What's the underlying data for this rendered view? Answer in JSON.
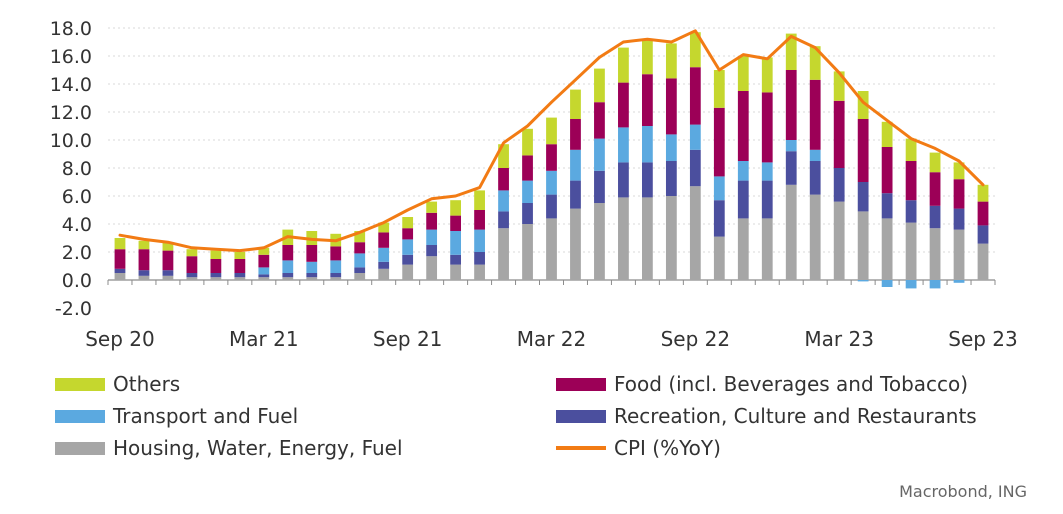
{
  "chart_data": {
    "type": "bar",
    "stacked": true,
    "source": "Macrobond, ING",
    "ylim": [
      -2,
      18
    ],
    "yticks": [
      "18.0",
      "16.0",
      "14.0",
      "12.0",
      "10.0",
      "8.0",
      "6.0",
      "4.0",
      "2.0",
      "0.0",
      "-2.0"
    ],
    "ytick_values": [
      18,
      16,
      14,
      12,
      10,
      8,
      6,
      4,
      2,
      0,
      -2
    ],
    "xtick_labels": [
      {
        "index": 0,
        "label": "Sep 20"
      },
      {
        "index": 6,
        "label": "Mar 21"
      },
      {
        "index": 12,
        "label": "Sep 21"
      },
      {
        "index": 18,
        "label": "Mar 22"
      },
      {
        "index": 24,
        "label": "Sep 22"
      },
      {
        "index": 30,
        "label": "Mar 23"
      },
      {
        "index": 36,
        "label": "Sep 23"
      }
    ],
    "categories": [
      "Sep 20",
      "Oct 20",
      "Nov 20",
      "Dec 20",
      "Jan 21",
      "Feb 21",
      "Mar 21",
      "Apr 21",
      "May 21",
      "Jun 21",
      "Jul 21",
      "Aug 21",
      "Sep 21",
      "Oct 21",
      "Nov 21",
      "Dec 21",
      "Jan 22",
      "Feb 22",
      "Mar 22",
      "Apr 22",
      "May 22",
      "Jun 22",
      "Jul 22",
      "Aug 22",
      "Sep 22",
      "Oct 22",
      "Nov 22",
      "Dec 22",
      "Jan 23",
      "Feb 23",
      "Mar 23",
      "Apr 23",
      "May 23",
      "Jun 23",
      "Jul 23",
      "Aug 23",
      "Sep 23"
    ],
    "series": [
      {
        "name": "Housing, Water, Energy, Fuel",
        "color": "#a6a6a6",
        "values": [
          0.5,
          0.3,
          0.3,
          0.2,
          0.2,
          0.2,
          0.2,
          0.2,
          0.2,
          0.2,
          0.5,
          0.8,
          1.1,
          1.7,
          1.1,
          1.1,
          3.7,
          4.0,
          4.4,
          5.1,
          5.5,
          5.9,
          5.9,
          6.0,
          6.7,
          3.1,
          4.4,
          4.4,
          6.8,
          6.1,
          5.6,
          4.9,
          4.4,
          4.1,
          3.7,
          3.6,
          2.6
        ]
      },
      {
        "name": "Recreation, Culture and Restaurants",
        "color": "#4b4f9e",
        "values": [
          0.3,
          0.4,
          0.4,
          0.3,
          0.3,
          0.3,
          0.2,
          0.3,
          0.3,
          0.3,
          0.4,
          0.5,
          0.7,
          0.8,
          0.7,
          0.9,
          1.2,
          1.5,
          1.7,
          2.0,
          2.3,
          2.5,
          2.5,
          2.5,
          2.6,
          2.6,
          2.7,
          2.7,
          2.4,
          2.4,
          2.4,
          2.1,
          1.8,
          1.6,
          1.6,
          1.5,
          1.3
        ]
      },
      {
        "name": "Transport and Fuel",
        "color": "#5ba9e0",
        "values": [
          0,
          0,
          0,
          0,
          0,
          0,
          0.5,
          0.9,
          0.8,
          0.9,
          1.0,
          1.0,
          1.1,
          1.1,
          1.7,
          1.6,
          1.5,
          1.6,
          1.7,
          2.2,
          2.3,
          2.5,
          2.6,
          1.9,
          1.8,
          1.7,
          1.4,
          1.3,
          0.8,
          0.8,
          0,
          -0.1,
          -0.5,
          -0.6,
          -0.6,
          -0.2,
          0
        ]
      },
      {
        "name": "Food (incl. Beverages and Tobacco)",
        "color": "#9c0057",
        "values": [
          1.4,
          1.5,
          1.4,
          1.2,
          1.0,
          1.0,
          0.9,
          1.1,
          1.2,
          1.0,
          0.8,
          1.1,
          0.8,
          1.2,
          1.1,
          1.4,
          1.6,
          1.8,
          1.9,
          2.2,
          2.6,
          3.2,
          3.7,
          4.0,
          4.1,
          4.9,
          5.0,
          5.0,
          5.0,
          5.0,
          4.8,
          4.5,
          3.3,
          2.8,
          2.4,
          2.1,
          1.7
        ]
      },
      {
        "name": "Others",
        "color": "#c5d72e",
        "values": [
          0.8,
          0.6,
          0.6,
          0.5,
          0.6,
          0.5,
          0.5,
          1.1,
          1.0,
          0.9,
          0.8,
          0.7,
          0.8,
          0.8,
          1.1,
          1.4,
          1.7,
          1.9,
          1.9,
          2.1,
          2.4,
          2.5,
          2.5,
          2.5,
          2.5,
          2.7,
          2.5,
          2.5,
          2.6,
          2.4,
          2.1,
          2.0,
          1.8,
          1.6,
          1.4,
          1.2,
          1.2
        ]
      }
    ],
    "line": {
      "name": "CPI (%YoY)",
      "color": "#f27b14",
      "values": [
        3.2,
        2.9,
        2.7,
        2.3,
        2.2,
        2.1,
        2.3,
        3.1,
        2.9,
        2.8,
        3.4,
        4.1,
        5.0,
        5.8,
        6.0,
        6.6,
        9.8,
        11.0,
        12.7,
        14.3,
        15.9,
        17.0,
        17.2,
        17.0,
        17.8,
        15.0,
        16.1,
        15.8,
        17.4,
        16.6,
        14.8,
        12.7,
        11.4,
        10.1,
        9.4,
        8.5,
        6.8
      ]
    }
  },
  "legend": {
    "others": "Others",
    "food": "Food (incl. Beverages and Tobacco)",
    "transport": "Transport and Fuel",
    "recreation": "Recreation, Culture and Restaurants",
    "housing": "Housing, Water, Energy, Fuel",
    "cpi": "CPI (%YoY)"
  },
  "source_label": "Macrobond, ING",
  "colors": {
    "others": "#c5d72e",
    "food": "#9c0057",
    "transport": "#5ba9e0",
    "recreation": "#4b4f9e",
    "housing": "#a6a6a6",
    "cpi": "#f27b14"
  }
}
